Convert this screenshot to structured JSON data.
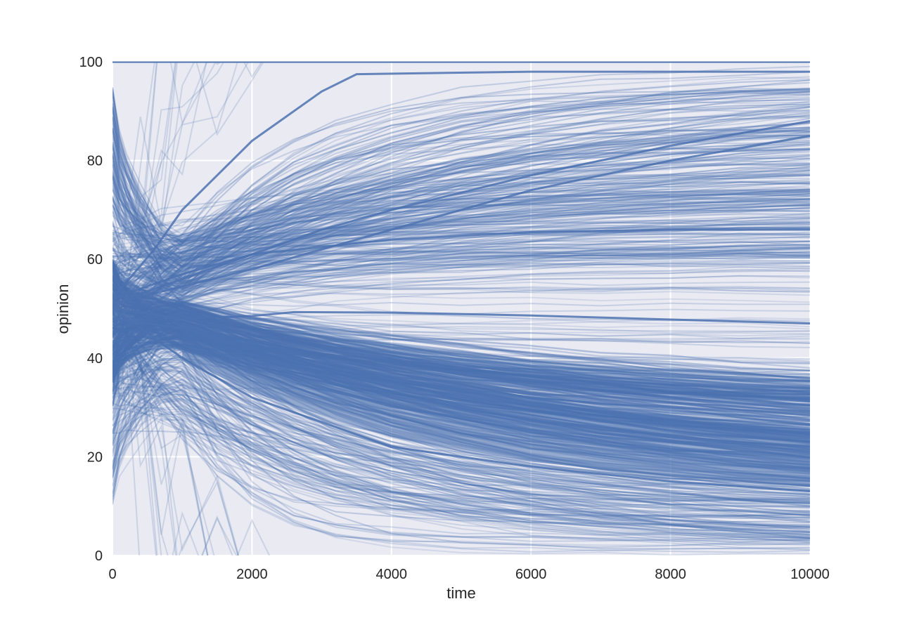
{
  "chart_data": {
    "type": "line",
    "title": "",
    "xlabel": "time",
    "ylabel": "opinion",
    "xlim": [
      0,
      10000
    ],
    "ylim": [
      0,
      100
    ],
    "xticks": [
      0,
      2000,
      4000,
      6000,
      8000,
      10000
    ],
    "yticks": [
      0,
      20,
      40,
      60,
      80,
      100
    ],
    "grid": true,
    "legend": "none",
    "colors": {
      "line": "#4c72b0",
      "background": "#eaeaf2",
      "grid": "#ffffff"
    },
    "representative_series": [
      {
        "x": [
          0,
          200,
          600,
          1000,
          2000,
          3000,
          4000,
          6000,
          8000,
          10000
        ],
        "y": [
          50,
          52,
          54,
          56,
          61,
          66,
          70,
          77,
          83,
          88
        ]
      },
      {
        "x": [
          0,
          1000,
          2000,
          2600,
          4000,
          6000,
          8000,
          10000
        ],
        "y": [
          50,
          48,
          48.5,
          49.3,
          49.2,
          48.6,
          47.8,
          47
        ]
      },
      {
        "x": [
          0,
          1000,
          2000,
          4000,
          6000,
          8000,
          10000
        ],
        "y": [
          48,
          46,
          42,
          36,
          31,
          27.5,
          24.5
        ]
      },
      {
        "x": [
          0,
          600,
          1000,
          2000,
          3000,
          3500,
          6000,
          10000
        ],
        "y": [
          52,
          62,
          70,
          84,
          94,
          97.5,
          98,
          98
        ]
      },
      {
        "x": [
          0,
          1000,
          2000,
          4000,
          6000,
          8000,
          10000
        ],
        "y": [
          50,
          40,
          32,
          22,
          18,
          15,
          13
        ]
      },
      {
        "x": [
          0,
          1000,
          2000,
          4000,
          6000,
          8000,
          10000
        ],
        "y": [
          52,
          57,
          61,
          64,
          65.5,
          66,
          66
        ]
      },
      {
        "x": [
          0,
          2000,
          4000,
          6000,
          8000,
          10000
        ],
        "y": [
          51,
          58,
          66,
          74,
          80,
          85
        ]
      }
    ]
  }
}
